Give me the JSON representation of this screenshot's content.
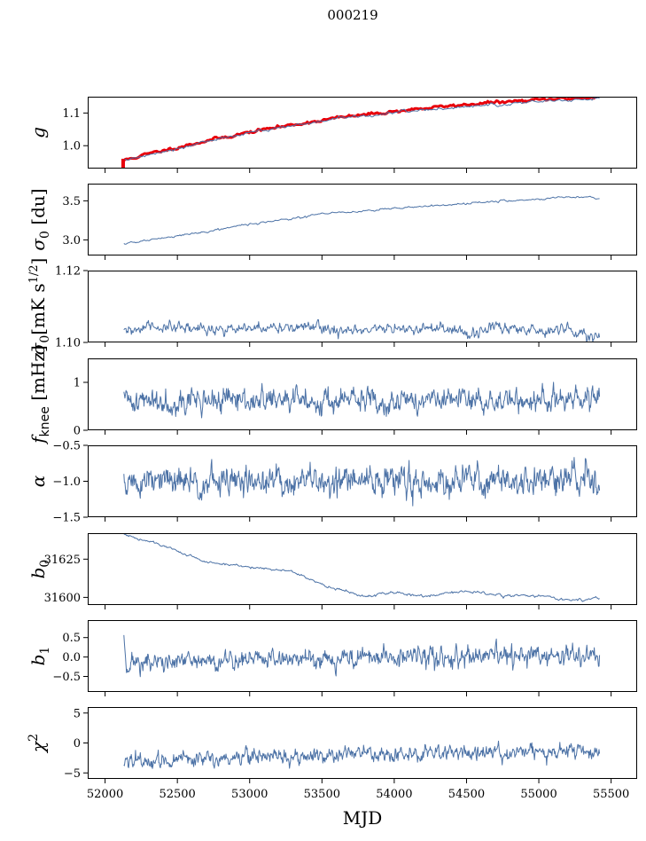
{
  "figure": {
    "title": "000219"
  },
  "colors": {
    "series": "#4c72a6",
    "highlight": "#e8000b",
    "axes": "#000000"
  },
  "chart_data": {
    "type": "line",
    "xlabel": "MJD",
    "xlim": [
      51880,
      55680
    ],
    "xticks": [
      52000,
      52500,
      53000,
      53500,
      54000,
      54500,
      55000,
      55500
    ],
    "xtick_labels": [
      "52000",
      "52500",
      "53000",
      "53500",
      "54000",
      "54500",
      "55000",
      "55500"
    ],
    "x_range": [
      52130,
      55420
    ],
    "panels": [
      {
        "id": "g",
        "ylabel": "g",
        "ylim": [
          0.93,
          1.15
        ],
        "yticks": [
          1.0,
          1.1
        ],
        "ytick_labels": [
          "1.0",
          "1.1"
        ],
        "series": [
          {
            "style": "highlight",
            "anchors": [
              [
                52130,
                0.955
              ],
              [
                52300,
                0.975
              ],
              [
                52700,
                1.015
              ],
              [
                53100,
                1.05
              ],
              [
                53600,
                1.085
              ],
              [
                54100,
                1.11
              ],
              [
                54600,
                1.13
              ],
              [
                55000,
                1.14
              ],
              [
                55420,
                1.15
              ]
            ],
            "noise": 0.002,
            "n": 320,
            "seed": 11,
            "width": 3
          },
          {
            "style": "main",
            "anchors": [
              [
                52130,
                0.955
              ],
              [
                52300,
                0.972
              ],
              [
                52700,
                1.013
              ],
              [
                53100,
                1.048
              ],
              [
                53600,
                1.082
              ],
              [
                54100,
                1.106
              ],
              [
                54600,
                1.122
              ],
              [
                55000,
                1.135
              ],
              [
                55420,
                1.145
              ]
            ],
            "noise": 0.002,
            "n": 320,
            "seed": 12,
            "width": 1
          }
        ],
        "spikes": [
          {
            "x": 52125,
            "y0": 0.93,
            "y1": 0.96
          }
        ]
      },
      {
        "id": "sigma0_du",
        "ylabel": "σ₀ [du]",
        "ylim": [
          2.8,
          3.72
        ],
        "yticks": [
          3.0,
          3.5
        ],
        "ytick_labels": [
          "3.0",
          "3.5"
        ],
        "series": [
          {
            "style": "main",
            "anchors": [
              [
                52130,
                2.95
              ],
              [
                52500,
                3.05
              ],
              [
                53000,
                3.2
              ],
              [
                53500,
                3.33
              ],
              [
                54000,
                3.4
              ],
              [
                54500,
                3.47
              ],
              [
                55000,
                3.52
              ],
              [
                55300,
                3.56
              ],
              [
                55420,
                3.53
              ]
            ],
            "noise": 0.006,
            "n": 400,
            "seed": 21,
            "width": 1
          }
        ]
      },
      {
        "id": "sigma0_mk",
        "ylabel": "σ₀[mK s^1/2]",
        "ylim": [
          1.1,
          1.12
        ],
        "yticks": [
          1.1,
          1.12
        ],
        "ytick_labels": [
          "1.10",
          "1.12"
        ],
        "series": [
          {
            "style": "main",
            "anchors": [
              [
                52130,
                1.1025
              ],
              [
                52300,
                1.1045
              ],
              [
                52500,
                1.1038
              ],
              [
                52700,
                1.104
              ],
              [
                53000,
                1.1035
              ],
              [
                53300,
                1.1045
              ],
              [
                53600,
                1.1035
              ],
              [
                53800,
                1.1028
              ],
              [
                54000,
                1.1042
              ],
              [
                54300,
                1.1035
              ],
              [
                54500,
                1.1025
              ],
              [
                54700,
                1.104
              ],
              [
                55000,
                1.1035
              ],
              [
                55200,
                1.1042
              ],
              [
                55420,
                1.101
              ]
            ],
            "noise": 0.0007,
            "n": 700,
            "seed": 31,
            "width": 1
          }
        ]
      },
      {
        "id": "fknee",
        "ylabel": "f_knee [mHz]",
        "ylim": [
          0,
          1.5
        ],
        "yticks": [
          0,
          1
        ],
        "ytick_labels": [
          "0",
          "1"
        ],
        "series": [
          {
            "style": "main",
            "anchors": [
              [
                52130,
                0.62
              ],
              [
                55420,
                0.62
              ]
            ],
            "noise": 0.11,
            "n": 900,
            "seed": 41,
            "width": 1
          }
        ]
      },
      {
        "id": "alpha",
        "ylabel": "α",
        "ylim": [
          -1.5,
          -0.5
        ],
        "yticks": [
          -1.5,
          -1.0,
          -0.5
        ],
        "ytick_labels": [
          "−1.5",
          "−1.0",
          "−0.5"
        ],
        "series": [
          {
            "style": "main",
            "anchors": [
              [
                52130,
                -1.02
              ],
              [
                55420,
                -0.98
              ]
            ],
            "noise": 0.09,
            "n": 900,
            "seed": 51,
            "width": 1
          }
        ]
      },
      {
        "id": "b0",
        "ylabel": "b0",
        "ylim": [
          31595,
          31642
        ],
        "yticks": [
          31600,
          31625
        ],
        "ytick_labels": [
          "31600",
          "31625"
        ],
        "series": [
          {
            "style": "main",
            "anchors": [
              [
                52130,
                31641
              ],
              [
                52400,
                31634
              ],
              [
                52700,
                31623
              ],
              [
                53000,
                31620
              ],
              [
                53300,
                31617
              ],
              [
                53500,
                31608
              ],
              [
                53800,
                31601
              ],
              [
                54000,
                31603
              ],
              [
                54200,
                31601
              ],
              [
                54500,
                31604
              ],
              [
                54800,
                31601
              ],
              [
                55000,
                31601
              ],
              [
                55200,
                31598
              ],
              [
                55300,
                31598
              ],
              [
                55420,
                31600
              ]
            ],
            "noise": 0.4,
            "n": 500,
            "seed": 61,
            "width": 1
          }
        ]
      },
      {
        "id": "b1",
        "ylabel": "b1",
        "ylim": [
          -0.9,
          0.95
        ],
        "yticks": [
          -0.5,
          0.0,
          0.5
        ],
        "ytick_labels": [
          "−0.5",
          "0.0",
          "0.5"
        ],
        "series": [
          {
            "style": "main",
            "anchors": [
              [
                52130,
                0.6
              ],
              [
                52145,
                -0.15
              ],
              [
                52500,
                -0.15
              ],
              [
                53000,
                -0.05
              ],
              [
                53500,
                -0.03
              ],
              [
                54000,
                0.0
              ],
              [
                54500,
                -0.02
              ],
              [
                55000,
                0.02
              ],
              [
                55420,
                0.02
              ]
            ],
            "noise": 0.11,
            "n": 900,
            "seed": 71,
            "width": 1
          }
        ]
      },
      {
        "id": "chi2",
        "ylabel": "χ²",
        "ylim": [
          -6,
          6
        ],
        "yticks": [
          -5,
          0,
          5
        ],
        "ytick_labels": [
          "−5",
          "0",
          "5"
        ],
        "series": [
          {
            "style": "main",
            "anchors": [
              [
                52130,
                -3.0
              ],
              [
                52400,
                -3.2
              ],
              [
                52800,
                -2.3
              ],
              [
                53200,
                -2.0
              ],
              [
                53600,
                -2.0
              ],
              [
                54000,
                -1.6
              ],
              [
                54500,
                -1.5
              ],
              [
                55000,
                -1.5
              ],
              [
                55420,
                -1.5
              ]
            ],
            "noise": 0.55,
            "n": 900,
            "seed": 81,
            "width": 1
          }
        ]
      }
    ]
  }
}
